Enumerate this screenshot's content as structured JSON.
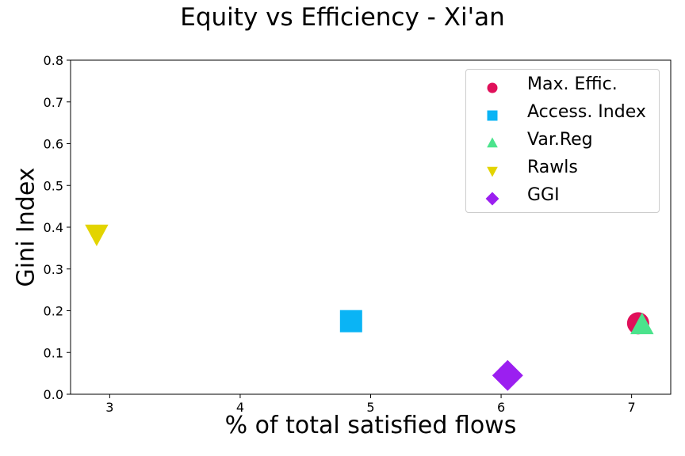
{
  "chart_data": {
    "type": "scatter",
    "title": "Equity vs Efficiency - Xi'an",
    "xlabel": "% of total satisfied flows",
    "ylabel": "Gini Index",
    "xlim": [
      2.7,
      7.3
    ],
    "ylim": [
      0.0,
      0.8
    ],
    "xticks": [
      "3",
      "4",
      "5",
      "6",
      "7"
    ],
    "yticks": [
      "0.0",
      "0.1",
      "0.2",
      "0.3",
      "0.4",
      "0.5",
      "0.6",
      "0.7",
      "0.8"
    ],
    "legend_position": "top-right",
    "grid": false,
    "series": [
      {
        "name": "Max. Effic.",
        "marker": "circle",
        "color": "#e0105a",
        "x": 7.05,
        "y": 0.17
      },
      {
        "name": "Access. Index",
        "marker": "square",
        "color": "#0ab4f5",
        "x": 4.85,
        "y": 0.175
      },
      {
        "name": "Var.Reg",
        "marker": "triangle-up",
        "color": "#4be38c",
        "x": 7.08,
        "y": 0.165
      },
      {
        "name": "Rawls",
        "marker": "triangle-down",
        "color": "#e3d400",
        "x": 2.9,
        "y": 0.385
      },
      {
        "name": "GGI",
        "marker": "diamond",
        "color": "#9b1ff0",
        "x": 6.05,
        "y": 0.045
      }
    ]
  }
}
